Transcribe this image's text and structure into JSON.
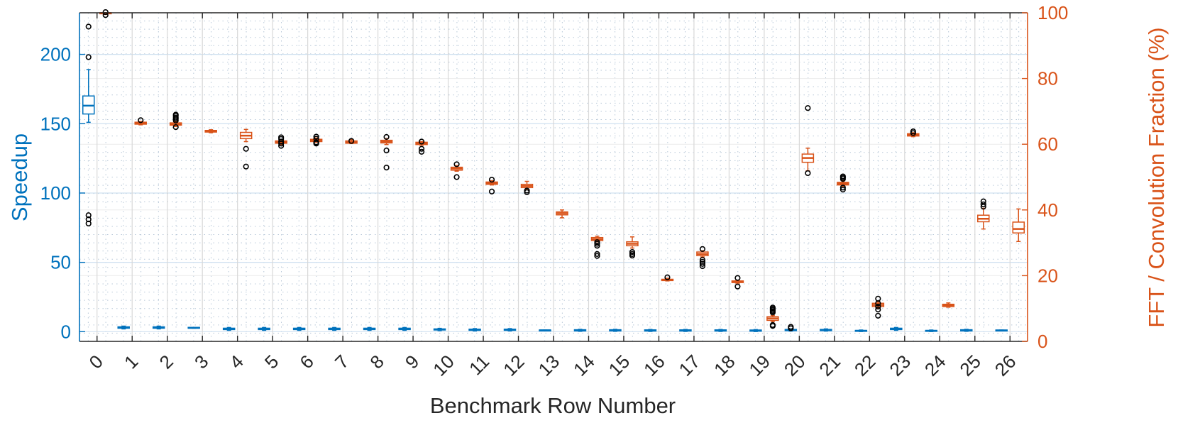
{
  "chart_data": {
    "type": "box",
    "xlabel": "Benchmark Row Number",
    "ylabel_left": "Speedup",
    "ylabel_right": "FFT / Convolution Fraction (%)",
    "categories": [
      "0",
      "1",
      "2",
      "3",
      "4",
      "5",
      "6",
      "7",
      "8",
      "9",
      "10",
      "11",
      "12",
      "13",
      "14",
      "15",
      "16",
      "17",
      "18",
      "19",
      "20",
      "21",
      "22",
      "23",
      "24",
      "25",
      "26"
    ],
    "y_left_range": [
      -7,
      230
    ],
    "y_left_ticks": [
      0,
      50,
      100,
      150,
      200
    ],
    "y_right_range": [
      0,
      100
    ],
    "y_right_ticks": [
      0,
      20,
      40,
      60,
      80,
      100
    ],
    "grid": true,
    "colors": {
      "speedup": "#0072BD",
      "fraction": "#D95319",
      "outlier": "#000000",
      "axis_left": "#0072BD",
      "axis_right": "#D95319",
      "text": "#262626"
    },
    "series": [
      {
        "name": "Speedup",
        "axis": "left",
        "boxes": [
          {
            "cat": "0",
            "q1": 157,
            "median": 163,
            "q3": 170,
            "whisker_low": 151,
            "whisker_high": 189,
            "outliers": [
              220,
              198,
              84,
              81,
              78
            ]
          },
          {
            "cat": "1",
            "q1": 2.5,
            "median": 3,
            "q3": 3.5,
            "whisker_low": 2,
            "whisker_high": 4,
            "outliers": []
          },
          {
            "cat": "2",
            "q1": 2.5,
            "median": 3,
            "q3": 3.5,
            "whisker_low": 2,
            "whisker_high": 4,
            "outliers": []
          },
          {
            "cat": "3",
            "q1": 2.5,
            "median": 2.8,
            "q3": 3.1,
            "whisker_low": 2.5,
            "whisker_high": 3.1,
            "outliers": []
          },
          {
            "cat": "4",
            "q1": 1.5,
            "median": 2,
            "q3": 2.5,
            "whisker_low": 1,
            "whisker_high": 3,
            "outliers": []
          },
          {
            "cat": "5",
            "q1": 1.5,
            "median": 2,
            "q3": 2.5,
            "whisker_low": 1,
            "whisker_high": 3,
            "outliers": []
          },
          {
            "cat": "6",
            "q1": 1.5,
            "median": 2,
            "q3": 2.5,
            "whisker_low": 1,
            "whisker_high": 3,
            "outliers": []
          },
          {
            "cat": "7",
            "q1": 1.5,
            "median": 2,
            "q3": 2.5,
            "whisker_low": 1,
            "whisker_high": 3,
            "outliers": []
          },
          {
            "cat": "8",
            "q1": 1.5,
            "median": 2,
            "q3": 2.5,
            "whisker_low": 1,
            "whisker_high": 3,
            "outliers": []
          },
          {
            "cat": "9",
            "q1": 1.5,
            "median": 2,
            "q3": 2.5,
            "whisker_low": 1,
            "whisker_high": 3,
            "outliers": []
          },
          {
            "cat": "10",
            "q1": 1.2,
            "median": 1.6,
            "q3": 2,
            "whisker_low": 0.8,
            "whisker_high": 2.4,
            "outliers": []
          },
          {
            "cat": "11",
            "q1": 1,
            "median": 1.4,
            "q3": 1.8,
            "whisker_low": 0.6,
            "whisker_high": 2.2,
            "outliers": []
          },
          {
            "cat": "12",
            "q1": 1,
            "median": 1.4,
            "q3": 1.8,
            "whisker_low": 0.6,
            "whisker_high": 2.2,
            "outliers": []
          },
          {
            "cat": "13",
            "q1": 0.8,
            "median": 1,
            "q3": 1.2,
            "whisker_low": 0.8,
            "whisker_high": 1.2,
            "outliers": []
          },
          {
            "cat": "14",
            "q1": 0.6,
            "median": 1,
            "q3": 1.4,
            "whisker_low": 0.3,
            "whisker_high": 1.7,
            "outliers": []
          },
          {
            "cat": "15",
            "q1": 0.6,
            "median": 1,
            "q3": 1.4,
            "whisker_low": 0.3,
            "whisker_high": 1.7,
            "outliers": []
          },
          {
            "cat": "16",
            "q1": 0.5,
            "median": 0.9,
            "q3": 1.3,
            "whisker_low": 0.2,
            "whisker_high": 1.6,
            "outliers": []
          },
          {
            "cat": "17",
            "q1": 0.5,
            "median": 0.9,
            "q3": 1.3,
            "whisker_low": 0.2,
            "whisker_high": 1.6,
            "outliers": []
          },
          {
            "cat": "18",
            "q1": 0.5,
            "median": 0.9,
            "q3": 1.3,
            "whisker_low": 0.2,
            "whisker_high": 1.6,
            "outliers": []
          },
          {
            "cat": "19",
            "q1": 0.4,
            "median": 0.8,
            "q3": 1.2,
            "whisker_low": 0.1,
            "whisker_high": 1.5,
            "outliers": []
          },
          {
            "cat": "20",
            "q1": 0.8,
            "median": 1.2,
            "q3": 1.6,
            "whisker_low": 0.5,
            "whisker_high": 2,
            "outliers": [
              3.5,
              2.5
            ]
          },
          {
            "cat": "21",
            "q1": 0.8,
            "median": 1.2,
            "q3": 1.6,
            "whisker_low": 0.5,
            "whisker_high": 2,
            "outliers": []
          },
          {
            "cat": "22",
            "q1": 0.3,
            "median": 0.6,
            "q3": 0.9,
            "whisker_low": 0.1,
            "whisker_high": 1.2,
            "outliers": []
          },
          {
            "cat": "23",
            "q1": 1.5,
            "median": 2,
            "q3": 2.5,
            "whisker_low": 1,
            "whisker_high": 3,
            "outliers": []
          },
          {
            "cat": "24",
            "q1": 0.3,
            "median": 0.6,
            "q3": 0.9,
            "whisker_low": 0.1,
            "whisker_high": 1.2,
            "outliers": []
          },
          {
            "cat": "25",
            "q1": 0.6,
            "median": 1,
            "q3": 1.4,
            "whisker_low": 0.3,
            "whisker_high": 1.7,
            "outliers": []
          },
          {
            "cat": "26",
            "q1": 0.6,
            "median": 0.9,
            "q3": 1.2,
            "whisker_low": 0.6,
            "whisker_high": 1.2,
            "outliers": []
          }
        ]
      },
      {
        "name": "FFT / Convolution Fraction",
        "axis": "right",
        "boxes": [
          {
            "cat": "0",
            "q1": 99.7,
            "median": 99.9,
            "q3": 100,
            "whisker_low": 99.5,
            "whisker_high": 100,
            "outliers": [
              99.3,
              100.2
            ]
          },
          {
            "cat": "1",
            "q1": 66.1,
            "median": 66.4,
            "q3": 66.7,
            "whisker_low": 65.9,
            "whisker_high": 66.9,
            "outliers": [
              67.3
            ]
          },
          {
            "cat": "2",
            "q1": 65.8,
            "median": 66.1,
            "q3": 66.5,
            "whisker_low": 65.4,
            "whisker_high": 66.9,
            "outliers": [
              65.2,
              67.2,
              67.7,
              68.1,
              68.6,
              69.0
            ]
          },
          {
            "cat": "3",
            "q1": 63.7,
            "median": 64.0,
            "q3": 64.2,
            "whisker_low": 63.5,
            "whisker_high": 64.4,
            "outliers": []
          },
          {
            "cat": "4",
            "q1": 61.7,
            "median": 62.6,
            "q3": 63.6,
            "whisker_low": 60.8,
            "whisker_high": 64.5,
            "outliers": [
              58.6,
              53.2
            ]
          },
          {
            "cat": "5",
            "q1": 60.3,
            "median": 60.6,
            "q3": 61.0,
            "whisker_low": 59.9,
            "whisker_high": 61.5,
            "outliers": [
              59.5,
              60.2,
              60.8,
              61.6,
              62.1
            ]
          },
          {
            "cat": "6",
            "q1": 60.8,
            "median": 61.2,
            "q3": 61.5,
            "whisker_low": 60.6,
            "whisker_high": 61.9,
            "outliers": [
              60.2,
              60.4,
              60.6,
              61.7,
              62.3
            ]
          },
          {
            "cat": "7",
            "q1": 60.3,
            "median": 60.6,
            "q3": 61.0,
            "whisker_low": 60.2,
            "whisker_high": 61.4,
            "outliers": [
              61.0
            ]
          },
          {
            "cat": "8",
            "q1": 60.4,
            "median": 60.8,
            "q3": 61.2,
            "whisker_low": 59.9,
            "whisker_high": 61.7,
            "outliers": [
              58.1,
              52.9,
              62.2
            ]
          },
          {
            "cat": "9",
            "q1": 59.9,
            "median": 60.2,
            "q3": 60.6,
            "whisker_low": 59.7,
            "whisker_high": 60.8,
            "outliers": [
              58.6,
              57.7,
              60.8
            ]
          },
          {
            "cat": "10",
            "q1": 52.1,
            "median": 52.6,
            "q3": 53.0,
            "whisker_low": 51.8,
            "whisker_high": 53.5,
            "outliers": [
              53.9,
              50.0
            ]
          },
          {
            "cat": "11",
            "q1": 47.8,
            "median": 48.2,
            "q3": 48.5,
            "whisker_low": 47.6,
            "whisker_high": 48.9,
            "outliers": [
              49.2,
              45.6
            ]
          },
          {
            "cat": "12",
            "q1": 46.8,
            "median": 47.3,
            "q3": 47.8,
            "whisker_low": 46.4,
            "whisker_high": 48.7,
            "outliers": [
              45.9,
              45.4
            ]
          },
          {
            "cat": "13",
            "q1": 38.5,
            "median": 39.0,
            "q3": 39.4,
            "whisker_low": 37.6,
            "whisker_high": 40.0,
            "outliers": []
          },
          {
            "cat": "14",
            "q1": 30.7,
            "median": 31.1,
            "q3": 31.6,
            "whisker_low": 30.3,
            "whisker_high": 32.0,
            "outliers": [
              30.2,
              29.7,
              29.1,
              26.6,
              26.0
            ]
          },
          {
            "cat": "15",
            "q1": 29.1,
            "median": 29.7,
            "q3": 30.3,
            "whisker_low": 28.4,
            "whisker_high": 31.8,
            "outliers": [
              27.2,
              26.6,
              26.1
            ]
          },
          {
            "cat": "16",
            "q1": 18.5,
            "median": 18.7,
            "q3": 18.9,
            "whisker_low": 18.4,
            "whisker_high": 19.2,
            "outliers": [
              19.5
            ]
          },
          {
            "cat": "17",
            "q1": 26.1,
            "median": 26.6,
            "q3": 27.2,
            "whisker_low": 25.7,
            "whisker_high": 27.6,
            "outliers": [
              28.1,
              24.8,
              24.2,
              23.6,
              22.9
            ]
          },
          {
            "cat": "18",
            "q1": 17.9,
            "median": 18.2,
            "q3": 18.4,
            "whisker_low": 17.7,
            "whisker_high": 18.6,
            "outliers": [
              19.3,
              16.7
            ]
          },
          {
            "cat": "19",
            "q1": 6.4,
            "median": 7.0,
            "q3": 7.5,
            "whisker_low": 6.0,
            "whisker_high": 7.9,
            "outliers": [
              8.8,
              9.2,
              9.6,
              10.0,
              10.3,
              4.7,
              5.0
            ]
          },
          {
            "cat": "20",
            "q1": 54.5,
            "median": 55.8,
            "q3": 57.0,
            "whisker_low": 51.9,
            "whisker_high": 58.8,
            "outliers": [
              71.0,
              51.2
            ]
          },
          {
            "cat": "21",
            "q1": 47.6,
            "median": 48.0,
            "q3": 48.4,
            "whisker_low": 47.2,
            "whisker_high": 48.9,
            "outliers": [
              49.4,
              49.8,
              50.2,
              46.8,
              46.2
            ]
          },
          {
            "cat": "22",
            "q1": 10.6,
            "median": 11.1,
            "q3": 11.6,
            "whisker_low": 10.2,
            "whisker_high": 12.0,
            "outliers": [
              13.0,
              11.6,
              10.6,
              9.7,
              7.8
            ]
          },
          {
            "cat": "23",
            "q1": 62.5,
            "median": 62.9,
            "q3": 63.2,
            "whisker_low": 62.3,
            "whisker_high": 63.5,
            "outliers": [
              63.9,
              63.4
            ]
          },
          {
            "cat": "24",
            "q1": 10.6,
            "median": 11.0,
            "q3": 11.3,
            "whisker_low": 10.4,
            "whisker_high": 11.7,
            "outliers": []
          },
          {
            "cat": "25",
            "q1": 36.4,
            "median": 37.3,
            "q3": 38.4,
            "whisker_low": 34.2,
            "whisker_high": 40.5,
            "outliers": [
              42.6,
              41.7,
              41.0
            ]
          },
          {
            "cat": "26",
            "q1": 33.0,
            "median": 34.2,
            "q3": 36.3,
            "whisker_low": 30.4,
            "whisker_high": 40.3,
            "outliers": []
          }
        ]
      }
    ]
  }
}
